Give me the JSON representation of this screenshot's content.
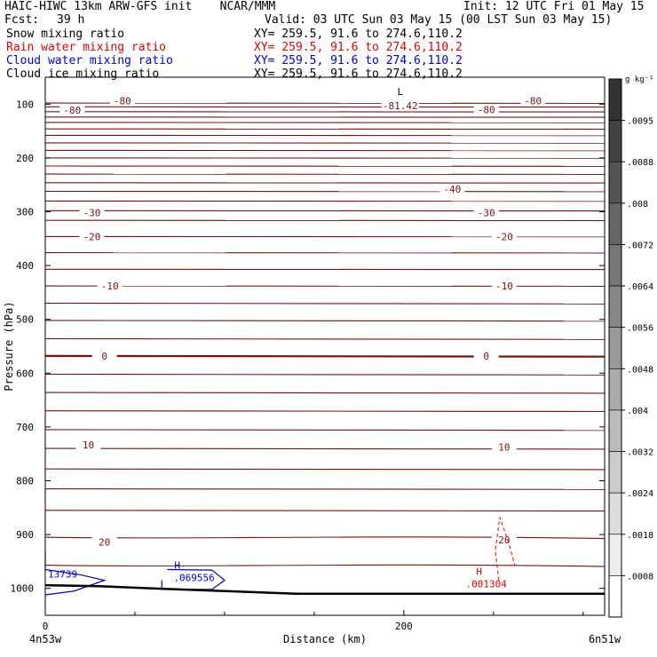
{
  "header": {
    "line1_left": "HAIC-HIWC 13km ARW-GFS init    NCAR/MMM",
    "line1_right": "Init: 12 UTC Fri 01 May 15",
    "fcst_label": "Fcst:",
    "fcst_value": "39 h",
    "valid": "Valid: 03 UTC Sun 03 May 15 (00 LST Sun 03 May 15)",
    "fields": [
      {
        "name": "Snow mixing ratio",
        "xy": "XY= 259.5, 91.6 to 274.6,110.2",
        "color": "#000000"
      },
      {
        "name": "Rain water mixing ratio",
        "xy": "XY= 259.5, 91.6 to 274.6,110.2",
        "color": "#e00000"
      },
      {
        "name": "Cloud water mixing ratio",
        "xy": "XY= 259.5, 91.6 to 274.6,110.2",
        "color": "#0000cc"
      },
      {
        "name": "Cloud ice mixing ratio",
        "xy": "XY= 259.5, 91.6 to 274.6,110.2",
        "color": "#000000"
      }
    ]
  },
  "chart_data": {
    "type": "contour",
    "xlabel": "Distance (km)",
    "ylabel": "Pressure (hPa)",
    "x_ticks": [
      0,
      200
    ],
    "x_range": [
      0,
      312
    ],
    "y_ticks": [
      100,
      200,
      300,
      400,
      500,
      600,
      700,
      800,
      900,
      1000
    ],
    "y_range": [
      50,
      1050
    ],
    "y_scale": "linear",
    "start_label": "4n53w",
    "end_label": "6n51w",
    "colorbar": {
      "unit": "g kg⁻¹",
      "labels": [
        ".0095",
        ".0088",
        ".008",
        ".0072",
        ".0064",
        ".0056",
        ".0048",
        ".004",
        ".0032",
        ".0024",
        ".0018",
        ".0008"
      ]
    },
    "temperature_labels": [
      {
        "x": 15,
        "p": 111,
        "text": "-80"
      },
      {
        "x": 43,
        "p": 94,
        "text": "-80"
      },
      {
        "x": 246,
        "p": 110,
        "text": "-80"
      },
      {
        "x": 272,
        "p": 94,
        "text": "-80"
      },
      {
        "x": 227,
        "p": 258,
        "text": "-40"
      },
      {
        "x": 26,
        "p": 302,
        "text": "-30"
      },
      {
        "x": 246,
        "p": 302,
        "text": "-30"
      },
      {
        "x": 26,
        "p": 346,
        "text": "-20"
      },
      {
        "x": 256,
        "p": 346,
        "text": "-20"
      },
      {
        "x": 36,
        "p": 438,
        "text": "-10"
      },
      {
        "x": 256,
        "p": 438,
        "text": "-10"
      },
      {
        "x": 33,
        "p": 568,
        "text": "0"
      },
      {
        "x": 246,
        "p": 568,
        "text": "0"
      },
      {
        "x": 24,
        "p": 733,
        "text": "10"
      },
      {
        "x": 256,
        "p": 737,
        "text": "10"
      },
      {
        "x": 33,
        "p": 914,
        "text": "20"
      },
      {
        "x": 256,
        "p": 910,
        "text": "20"
      }
    ],
    "low_marker": {
      "x": 198,
      "p": 90,
      "symbol": "L",
      "value": "-81.42"
    },
    "rain_max": {
      "x": 242,
      "p": 970,
      "symbol": "H",
      "value": ".001304"
    },
    "cloudwater_max": [
      {
        "x": 72,
        "p": 965,
        "symbol": "H",
        "value": ".069556"
      },
      {
        "x": 0,
        "p": 975,
        "symbol": "",
        "value": "13739"
      }
    ]
  }
}
